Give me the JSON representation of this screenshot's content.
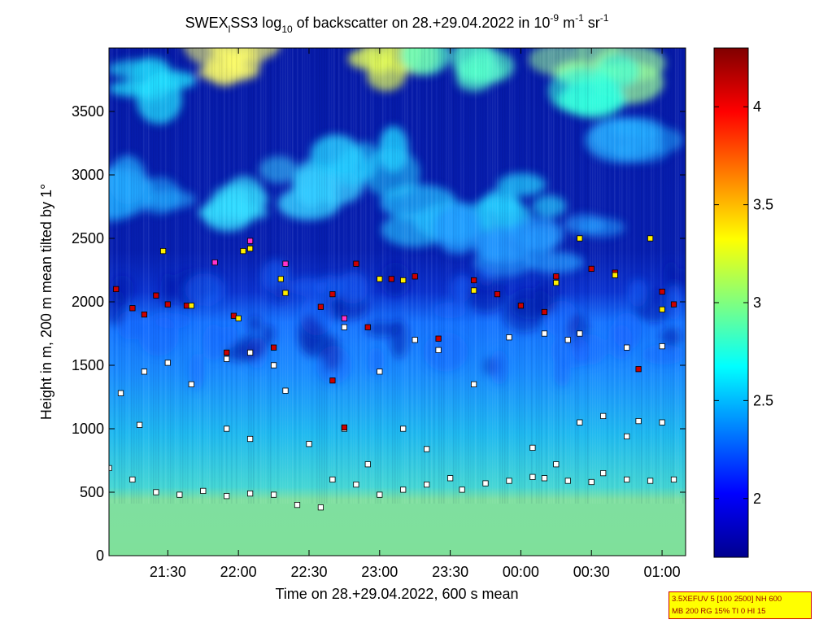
{
  "chart_data": {
    "type": "heatmap",
    "title": {
      "prefix": "SWEX",
      "prefix_sub": "l",
      "part2": "SS3 log",
      "log_sub": "10",
      "part3": " of backscatter on 28.+29.04.2022 in 10",
      "exp1": "-9",
      "part4": " m",
      "exp2": "-1",
      "part5": " sr",
      "exp3": "-1"
    },
    "xlabel": "Time on 28.+29.04.2022, 600 s mean",
    "ylabel": "Height in m, 200 m mean tilted by 1°",
    "x_range": [
      "21:05",
      "01:10"
    ],
    "x_ticks": [
      "21:30",
      "22:00",
      "22:30",
      "23:00",
      "23:30",
      "00:00",
      "00:30",
      "01:00"
    ],
    "y_range": [
      0,
      4000
    ],
    "y_ticks": [
      "0",
      "500",
      "1000",
      "1500",
      "2000",
      "2500",
      "3000",
      "3500"
    ],
    "colorbar": {
      "range": [
        1.7,
        4.3
      ],
      "ticks": [
        "2",
        "2.5",
        "3",
        "3.5",
        "4"
      ],
      "colormap": "jet"
    },
    "layers": {
      "surface_layer_top_m": 500,
      "aerosol_layer_top_m": 2000
    },
    "series": [
      {
        "marker": "square-white",
        "color": "#ffffff",
        "points": [
          [
            "21:05",
            690
          ],
          [
            "21:15",
            600
          ],
          [
            "21:25",
            500
          ],
          [
            "21:35",
            480
          ],
          [
            "21:45",
            510
          ],
          [
            "21:55",
            470
          ],
          [
            "22:05",
            490
          ],
          [
            "22:15",
            480
          ],
          [
            "22:25",
            400
          ],
          [
            "22:35",
            380
          ],
          [
            "22:40",
            600
          ],
          [
            "22:50",
            560
          ],
          [
            "23:00",
            480
          ],
          [
            "23:10",
            520
          ],
          [
            "23:20",
            560
          ],
          [
            "23:30",
            610
          ],
          [
            "23:35",
            520
          ],
          [
            "23:45",
            570
          ],
          [
            "23:55",
            590
          ],
          [
            "00:05",
            620
          ],
          [
            "00:10",
            610
          ],
          [
            "00:20",
            590
          ],
          [
            "00:30",
            580
          ],
          [
            "00:35",
            650
          ],
          [
            "00:45",
            600
          ],
          [
            "00:55",
            590
          ],
          [
            "01:05",
            600
          ],
          [
            "21:10",
            1280
          ],
          [
            "21:20",
            1450
          ],
          [
            "21:30",
            1520
          ],
          [
            "21:40",
            1350
          ],
          [
            "21:55",
            1550
          ],
          [
            "22:05",
            1600
          ],
          [
            "22:15",
            1500
          ],
          [
            "22:20",
            1300
          ],
          [
            "22:45",
            1800
          ],
          [
            "23:00",
            1450
          ],
          [
            "23:15",
            1700
          ],
          [
            "23:25",
            1620
          ],
          [
            "23:40",
            1350
          ],
          [
            "23:55",
            1720
          ],
          [
            "00:10",
            1750
          ],
          [
            "00:20",
            1700
          ],
          [
            "00:25",
            1750
          ],
          [
            "00:45",
            1640
          ],
          [
            "01:00",
            1650
          ],
          [
            "21:18",
            1030
          ],
          [
            "21:55",
            1000
          ],
          [
            "22:05",
            920
          ],
          [
            "22:30",
            880
          ],
          [
            "22:45",
            1000
          ],
          [
            "22:55",
            720
          ],
          [
            "23:10",
            1000
          ],
          [
            "23:20",
            840
          ],
          [
            "00:05",
            850
          ],
          [
            "00:15",
            720
          ],
          [
            "00:25",
            1050
          ],
          [
            "00:35",
            1100
          ],
          [
            "00:50",
            1060
          ],
          [
            "01:00",
            1050
          ],
          [
            "00:45",
            940
          ]
        ]
      },
      {
        "marker": "square-red",
        "color": "#cc0000",
        "points": [
          [
            "21:08",
            2100
          ],
          [
            "21:15",
            1950
          ],
          [
            "21:20",
            1900
          ],
          [
            "21:25",
            2050
          ],
          [
            "21:30",
            1980
          ],
          [
            "21:38",
            1970
          ],
          [
            "21:58",
            1890
          ],
          [
            "22:15",
            1640
          ],
          [
            "22:35",
            1960
          ],
          [
            "22:40",
            2060
          ],
          [
            "22:50",
            2300
          ],
          [
            "22:55",
            1800
          ],
          [
            "23:05",
            2180
          ],
          [
            "23:15",
            2200
          ],
          [
            "23:25",
            1710
          ],
          [
            "23:40",
            2170
          ],
          [
            "23:50",
            2060
          ],
          [
            "00:00",
            1970
          ],
          [
            "00:10",
            1920
          ],
          [
            "00:15",
            2200
          ],
          [
            "00:30",
            2260
          ],
          [
            "00:40",
            2230
          ],
          [
            "00:50",
            1470
          ],
          [
            "01:00",
            2080
          ],
          [
            "01:05",
            1980
          ],
          [
            "21:55",
            1600
          ],
          [
            "22:40",
            1380
          ],
          [
            "22:45",
            1010
          ]
        ]
      },
      {
        "marker": "square-yellow",
        "color": "#ffee00",
        "points": [
          [
            "21:28",
            2400
          ],
          [
            "21:40",
            1970
          ],
          [
            "22:00",
            1870
          ],
          [
            "22:05",
            2420
          ],
          [
            "22:18",
            2180
          ],
          [
            "23:00",
            2180
          ],
          [
            "23:10",
            2170
          ],
          [
            "23:40",
            2090
          ],
          [
            "00:15",
            2150
          ],
          [
            "00:25",
            2500
          ],
          [
            "00:40",
            2210
          ],
          [
            "00:55",
            2500
          ],
          [
            "01:00",
            1940
          ],
          [
            "22:02",
            2400
          ],
          [
            "22:20",
            2070
          ]
        ]
      },
      {
        "marker": "square-magenta",
        "color": "#ff33cc",
        "points": [
          [
            "21:50",
            2310
          ],
          [
            "22:20",
            2300
          ],
          [
            "22:45",
            1870
          ],
          [
            "22:05",
            2480
          ]
        ]
      }
    ]
  },
  "info_box": {
    "line1": "3.5XEFUV 5 [100 2500] NH 600",
    "line2": "MB 200 RG 15% TI 0 HI 15"
  }
}
